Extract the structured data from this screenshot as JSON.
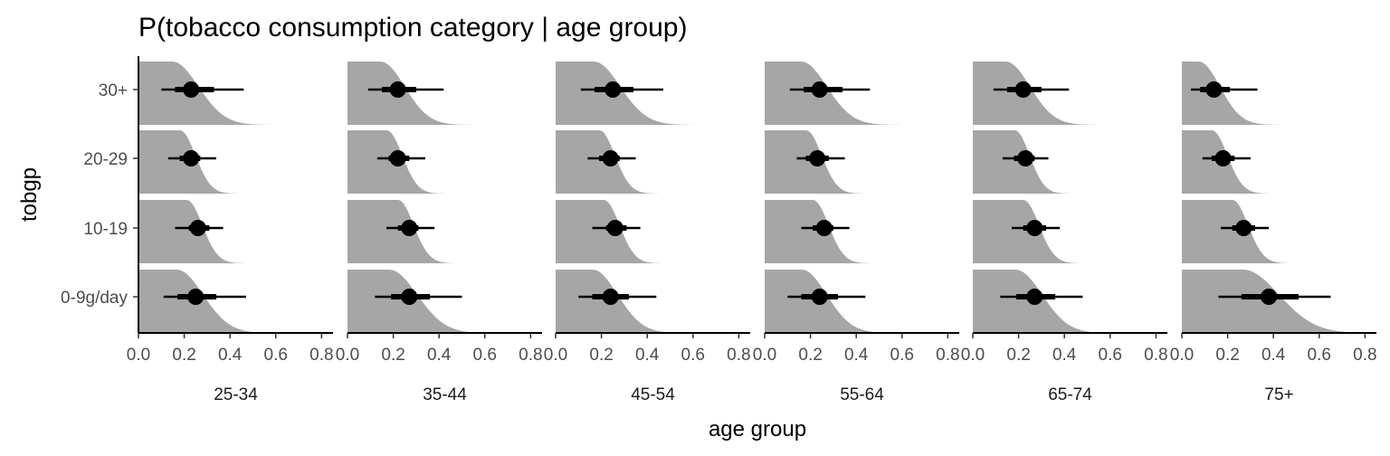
{
  "chart_data": {
    "type": "halfeye",
    "title": "P(tobacco consumption category | age group)",
    "xlabel": "age group",
    "ylabel": "tobgp",
    "xlim": [
      0,
      0.85
    ],
    "x_ticks": [
      0,
      0.2,
      0.4,
      0.6,
      0.8
    ],
    "x_tick_labels": [
      "0.0",
      "0.2",
      "0.4",
      "0.6",
      "0.8"
    ],
    "categories": [
      "0-9g/day",
      "10-19",
      "20-29",
      "30+"
    ],
    "facets": [
      "25-34",
      "35-44",
      "45-54",
      "55-64",
      "65-74",
      "75+"
    ],
    "density_color": "#a6a6a6",
    "point_color": "#000000",
    "grid": false,
    "series": [
      {
        "facet": "25-34",
        "rows": [
          {
            "cat": "0-9g/day",
            "point": 0.25,
            "q66": [
              0.17,
              0.34
            ],
            "q95": [
              0.11,
              0.47
            ]
          },
          {
            "cat": "10-19",
            "point": 0.26,
            "q66": [
              0.22,
              0.31
            ],
            "q95": [
              0.16,
              0.37
            ]
          },
          {
            "cat": "20-29",
            "point": 0.23,
            "q66": [
              0.18,
              0.27
            ],
            "q95": [
              0.13,
              0.34
            ]
          },
          {
            "cat": "30+",
            "point": 0.23,
            "q66": [
              0.16,
              0.33
            ],
            "q95": [
              0.1,
              0.46
            ]
          }
        ]
      },
      {
        "facet": "35-44",
        "rows": [
          {
            "cat": "0-9g/day",
            "point": 0.27,
            "q66": [
              0.19,
              0.36
            ],
            "q95": [
              0.12,
              0.5
            ]
          },
          {
            "cat": "10-19",
            "point": 0.27,
            "q66": [
              0.22,
              0.31
            ],
            "q95": [
              0.17,
              0.38
            ]
          },
          {
            "cat": "20-29",
            "point": 0.22,
            "q66": [
              0.18,
              0.27
            ],
            "q95": [
              0.13,
              0.34
            ]
          },
          {
            "cat": "30+",
            "point": 0.22,
            "q66": [
              0.15,
              0.3
            ],
            "q95": [
              0.09,
              0.42
            ]
          }
        ]
      },
      {
        "facet": "45-54",
        "rows": [
          {
            "cat": "0-9g/day",
            "point": 0.24,
            "q66": [
              0.16,
              0.32
            ],
            "q95": [
              0.1,
              0.44
            ]
          },
          {
            "cat": "10-19",
            "point": 0.26,
            "q66": [
              0.22,
              0.31
            ],
            "q95": [
              0.16,
              0.37
            ]
          },
          {
            "cat": "20-29",
            "point": 0.24,
            "q66": [
              0.19,
              0.28
            ],
            "q95": [
              0.14,
              0.35
            ]
          },
          {
            "cat": "30+",
            "point": 0.25,
            "q66": [
              0.17,
              0.34
            ],
            "q95": [
              0.11,
              0.47
            ]
          }
        ]
      },
      {
        "facet": "55-64",
        "rows": [
          {
            "cat": "0-9g/day",
            "point": 0.24,
            "q66": [
              0.16,
              0.32
            ],
            "q95": [
              0.1,
              0.44
            ]
          },
          {
            "cat": "10-19",
            "point": 0.26,
            "q66": [
              0.21,
              0.3
            ],
            "q95": [
              0.16,
              0.37
            ]
          },
          {
            "cat": "20-29",
            "point": 0.23,
            "q66": [
              0.18,
              0.28
            ],
            "q95": [
              0.14,
              0.35
            ]
          },
          {
            "cat": "30+",
            "point": 0.24,
            "q66": [
              0.17,
              0.34
            ],
            "q95": [
              0.11,
              0.46
            ]
          }
        ]
      },
      {
        "facet": "65-74",
        "rows": [
          {
            "cat": "0-9g/day",
            "point": 0.27,
            "q66": [
              0.19,
              0.36
            ],
            "q95": [
              0.12,
              0.48
            ]
          },
          {
            "cat": "10-19",
            "point": 0.27,
            "q66": [
              0.22,
              0.32
            ],
            "q95": [
              0.17,
              0.38
            ]
          },
          {
            "cat": "20-29",
            "point": 0.23,
            "q66": [
              0.18,
              0.27
            ],
            "q95": [
              0.13,
              0.33
            ]
          },
          {
            "cat": "30+",
            "point": 0.22,
            "q66": [
              0.15,
              0.3
            ],
            "q95": [
              0.09,
              0.42
            ]
          }
        ]
      },
      {
        "facet": "75+",
        "rows": [
          {
            "cat": "0-9g/day",
            "point": 0.38,
            "q66": [
              0.26,
              0.51
            ],
            "q95": [
              0.16,
              0.65
            ]
          },
          {
            "cat": "10-19",
            "point": 0.27,
            "q66": [
              0.22,
              0.32
            ],
            "q95": [
              0.17,
              0.38
            ]
          },
          {
            "cat": "20-29",
            "point": 0.18,
            "q66": [
              0.13,
              0.23
            ],
            "q95": [
              0.09,
              0.3
            ]
          },
          {
            "cat": "30+",
            "point": 0.14,
            "q66": [
              0.08,
              0.21
            ],
            "q95": [
              0.04,
              0.33
            ]
          }
        ]
      }
    ]
  }
}
